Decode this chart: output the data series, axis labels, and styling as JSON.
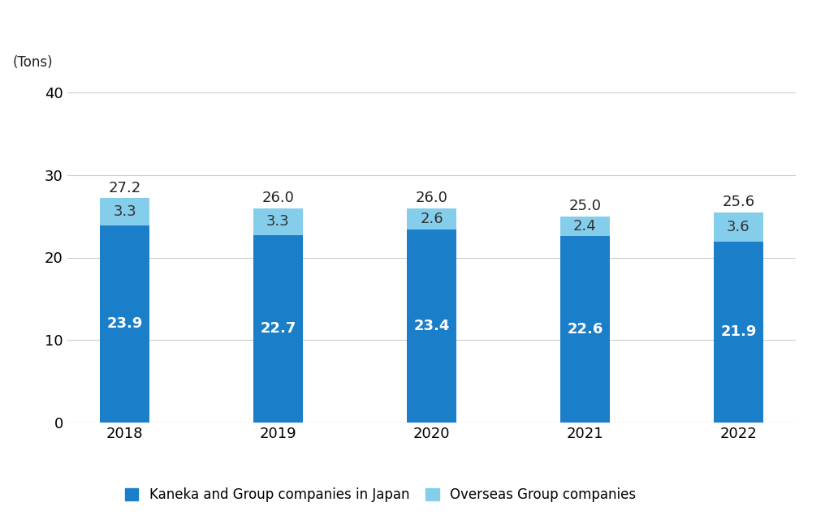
{
  "years": [
    "2018",
    "2019",
    "2020",
    "2021",
    "2022"
  ],
  "japan_values": [
    23.9,
    22.7,
    23.4,
    22.6,
    21.9
  ],
  "overseas_values": [
    3.3,
    3.3,
    2.6,
    2.4,
    3.6
  ],
  "totals": [
    27.2,
    26.0,
    26.0,
    25.0,
    25.6
  ],
  "japan_color": "#1A7EC8",
  "overseas_color": "#85CEEB",
  "bar_width": 0.32,
  "ylim": [
    0,
    40
  ],
  "yticks": [
    0,
    10,
    20,
    30,
    40
  ],
  "ylabel": "(Tons)",
  "legend_japan": "Kaneka and Group companies in Japan",
  "legend_overseas": "Overseas Group companies",
  "background_color": "#ffffff",
  "grid_color": "#cccccc",
  "tick_fontsize": 13,
  "legend_fontsize": 12,
  "total_label_fontsize": 13,
  "japan_label_fontsize": 13,
  "overseas_label_fontsize": 13,
  "ylabel_fontsize": 12
}
